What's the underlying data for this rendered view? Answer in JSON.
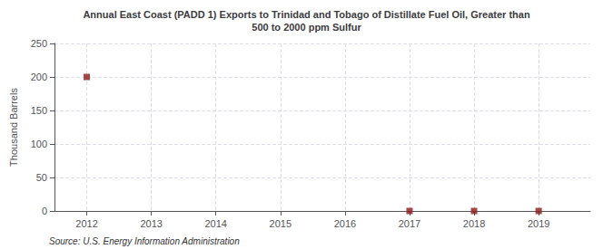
{
  "chart_data": {
    "type": "scatter",
    "title": "Annual East Coast (PADD 1) Exports to Trinidad and Tobago of Distillate Fuel Oil, Greater than\n500 to 2000 ppm Sulfur",
    "ylabel": "Thousand Barrels",
    "source": "Source: U.S. Energy Information Administration",
    "x": [
      2012,
      2017,
      2018,
      2019
    ],
    "values": [
      200,
      0,
      0,
      0
    ],
    "xlim": [
      2011.5,
      2019.8
    ],
    "xticks": [
      2012,
      2013,
      2014,
      2015,
      2016,
      2017,
      2018,
      2019
    ],
    "ylim": [
      0,
      250
    ],
    "yticks": [
      0,
      50,
      100,
      150,
      200,
      250
    ],
    "grid": true,
    "color": "#8b1a1a",
    "marker": "square"
  }
}
